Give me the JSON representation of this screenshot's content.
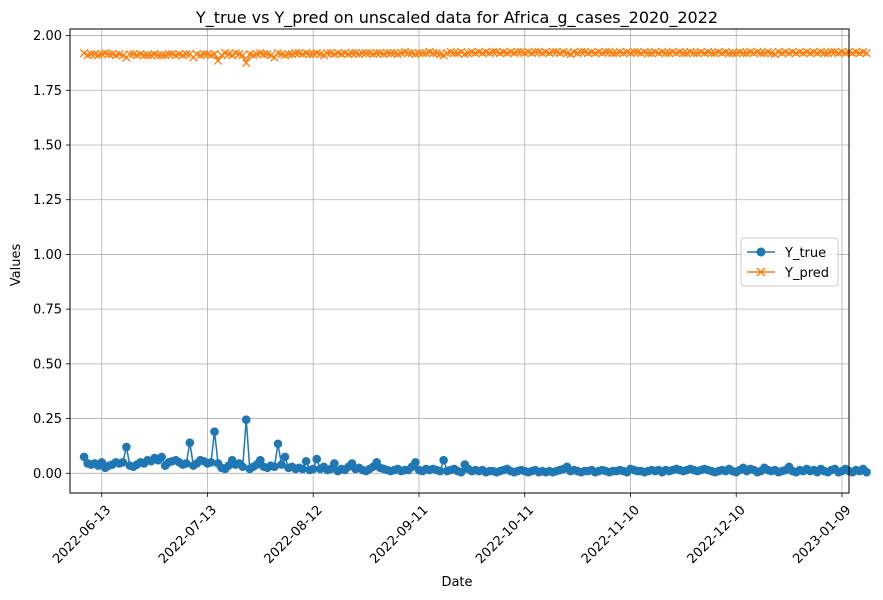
{
  "chart_data": {
    "type": "line",
    "title": "Y_true vs Y_pred on unscaled data for Africa_g_cases_2020_2022",
    "xlabel": "Date",
    "ylabel": "Values",
    "x_ticks": [
      "2022-06-13",
      "2022-07-13",
      "2022-08-12",
      "2022-09-11",
      "2022-10-11",
      "2022-11-10",
      "2022-12-10",
      "2023-01-09"
    ],
    "y_ticks": [
      "0.00",
      "0.25",
      "0.50",
      "0.75",
      "1.00",
      "1.25",
      "1.50",
      "1.75",
      "2.00"
    ],
    "xlim": [
      "2022-06-04",
      "2023-01-11"
    ],
    "ylim": [
      -0.09,
      2.03
    ],
    "grid": true,
    "legend_position": "center-right",
    "x_start_date": "2022-06-08",
    "x_end_date": "2022-12-31",
    "series": [
      {
        "name": "Y_true",
        "color": "#1f77b4",
        "marker": "circle",
        "values": [
          0.075,
          0.045,
          0.04,
          0.045,
          0.035,
          0.05,
          0.025,
          0.035,
          0.04,
          0.05,
          0.045,
          0.05,
          0.12,
          0.035,
          0.03,
          0.04,
          0.05,
          0.045,
          0.06,
          0.055,
          0.07,
          0.06,
          0.075,
          0.035,
          0.05,
          0.055,
          0.06,
          0.05,
          0.04,
          0.045,
          0.14,
          0.035,
          0.045,
          0.06,
          0.055,
          0.045,
          0.05,
          0.19,
          0.045,
          0.025,
          0.02,
          0.035,
          0.06,
          0.04,
          0.045,
          0.03,
          0.245,
          0.02,
          0.03,
          0.04,
          0.06,
          0.03,
          0.025,
          0.035,
          0.03,
          0.135,
          0.04,
          0.075,
          0.025,
          0.03,
          0.02,
          0.025,
          0.02,
          0.055,
          0.015,
          0.02,
          0.065,
          0.02,
          0.03,
          0.015,
          0.02,
          0.045,
          0.01,
          0.02,
          0.015,
          0.03,
          0.045,
          0.02,
          0.025,
          0.015,
          0.01,
          0.02,
          0.03,
          0.05,
          0.025,
          0.02,
          0.015,
          0.01,
          0.015,
          0.02,
          0.01,
          0.015,
          0.015,
          0.03,
          0.05,
          0.015,
          0.01,
          0.02,
          0.015,
          0.02,
          0.015,
          0.01,
          0.06,
          0.01,
          0.015,
          0.02,
          0.01,
          0.005,
          0.04,
          0.02,
          0.01,
          0.015,
          0.01,
          0.015,
          0.005,
          0.01,
          0.01,
          0.005,
          0.01,
          0.015,
          0.02,
          0.01,
          0.005,
          0.01,
          0.015,
          0.01,
          0.005,
          0.01,
          0.015,
          0.005,
          0.01,
          0.005,
          0.01,
          0.005,
          0.01,
          0.015,
          0.02,
          0.03,
          0.01,
          0.015,
          0.01,
          0.005,
          0.01,
          0.01,
          0.015,
          0.005,
          0.01,
          0.015,
          0.01,
          0.005,
          0.01,
          0.01,
          0.015,
          0.01,
          0.005,
          0.02,
          0.015,
          0.01,
          0.01,
          0.005,
          0.01,
          0.015,
          0.01,
          0.015,
          0.005,
          0.015,
          0.01,
          0.015,
          0.02,
          0.015,
          0.01,
          0.015,
          0.02,
          0.015,
          0.01,
          0.015,
          0.02,
          0.015,
          0.01,
          0.005,
          0.01,
          0.015,
          0.01,
          0.02,
          0.01,
          0.005,
          0.015,
          0.025,
          0.01,
          0.02,
          0.015,
          0.005,
          0.01,
          0.025,
          0.015,
          0.01,
          0.015,
          0.005,
          0.01,
          0.015,
          0.03,
          0.01,
          0.005,
          0.015,
          0.01,
          0.02,
          0.01,
          0.015,
          0.005,
          0.02,
          0.01,
          0.005,
          0.015,
          0.02,
          0.005,
          0.01,
          0.02,
          0.01,
          0.005,
          0.015,
          0.01,
          0.02,
          0.005
        ]
      },
      {
        "name": "Y_pred",
        "color": "#ff7f0e",
        "marker": "x",
        "values": [
          1.92,
          1.91,
          1.915,
          1.915,
          1.91,
          1.915,
          1.92,
          1.915,
          1.915,
          1.91,
          1.915,
          1.91,
          1.9,
          1.915,
          1.915,
          1.91,
          1.915,
          1.91,
          1.91,
          1.91,
          1.915,
          1.91,
          1.91,
          1.91,
          1.915,
          1.915,
          1.91,
          1.915,
          1.91,
          1.915,
          1.915,
          1.9,
          1.915,
          1.91,
          1.915,
          1.915,
          1.91,
          1.915,
          1.885,
          1.91,
          1.92,
          1.915,
          1.91,
          1.92,
          1.915,
          1.91,
          1.875,
          1.915,
          1.91,
          1.915,
          1.92,
          1.915,
          1.915,
          1.91,
          1.9,
          1.92,
          1.915,
          1.91,
          1.915,
          1.915,
          1.92,
          1.92,
          1.915,
          1.92,
          1.915,
          1.915,
          1.92,
          1.915,
          1.91,
          1.92,
          1.92,
          1.915,
          1.92,
          1.915,
          1.92,
          1.915,
          1.92,
          1.92,
          1.915,
          1.92,
          1.92,
          1.92,
          1.915,
          1.92,
          1.92,
          1.915,
          1.92,
          1.92,
          1.92,
          1.915,
          1.92,
          1.925,
          1.92,
          1.92,
          1.915,
          1.92,
          1.92,
          1.92,
          1.925,
          1.92,
          1.92,
          1.915,
          1.91,
          1.92,
          1.925,
          1.92,
          1.92,
          1.925,
          1.915,
          1.92,
          1.925,
          1.92,
          1.925,
          1.92,
          1.925,
          1.92,
          1.925,
          1.925,
          1.92,
          1.925,
          1.92,
          1.925,
          1.92,
          1.925,
          1.925,
          1.92,
          1.925,
          1.92,
          1.925,
          1.925,
          1.92,
          1.925,
          1.92,
          1.925,
          1.925,
          1.92,
          1.925,
          1.92,
          1.915,
          1.925,
          1.92,
          1.925,
          1.925,
          1.92,
          1.925,
          1.92,
          1.925,
          1.92,
          1.925,
          1.925,
          1.92,
          1.92,
          1.925,
          1.92,
          1.925,
          1.92,
          1.925,
          1.925,
          1.92,
          1.925,
          1.92,
          1.92,
          1.925,
          1.92,
          1.925,
          1.92,
          1.92,
          1.925,
          1.92,
          1.925,
          1.92,
          1.92,
          1.925,
          1.92,
          1.92,
          1.925,
          1.92,
          1.925,
          1.92,
          1.92,
          1.925,
          1.92,
          1.925,
          1.92,
          1.92,
          1.92,
          1.925,
          1.92,
          1.92,
          1.925,
          1.92,
          1.925,
          1.92,
          1.92,
          1.925,
          1.92,
          1.915,
          1.925,
          1.92,
          1.925,
          1.92,
          1.925,
          1.92,
          1.925,
          1.92,
          1.925,
          1.92,
          1.925,
          1.92,
          1.925,
          1.92,
          1.92,
          1.925,
          1.925,
          1.92,
          1.925,
          1.92,
          1.925,
          1.92,
          1.925,
          1.92,
          1.925,
          1.92
        ]
      }
    ]
  }
}
